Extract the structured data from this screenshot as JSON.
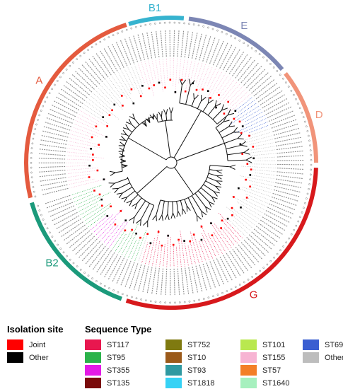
{
  "clades": [
    {
      "label": "A",
      "color": "#e45a3e"
    },
    {
      "label": "B1",
      "color": "#36b3cf"
    },
    {
      "label": "E",
      "color": "#7c86b4"
    },
    {
      "label": "D",
      "color": "#f1947a"
    },
    {
      "label": "G",
      "color": "#d7191c"
    },
    {
      "label": "B2",
      "color": "#1b9a7b"
    }
  ],
  "legend": {
    "isolation_title": "Isolation site",
    "isolation_items": [
      {
        "label": "Joint",
        "color": "#ff0000"
      },
      {
        "label": "Other",
        "color": "#000000"
      }
    ],
    "sequence_title": "Sequence Type",
    "sequence_items": [
      {
        "label": "ST117",
        "color": "#e8174f"
      },
      {
        "label": "ST95",
        "color": "#2bb34b"
      },
      {
        "label": "ST355",
        "color": "#e31be5"
      },
      {
        "label": "ST135",
        "color": "#7a0b0b"
      },
      {
        "label": "ST752",
        "color": "#7f7a10"
      },
      {
        "label": "ST10",
        "color": "#9b5a1a"
      },
      {
        "label": "ST93",
        "color": "#2f99a1"
      },
      {
        "label": "ST1818",
        "color": "#36d2f5"
      },
      {
        "label": "ST101",
        "color": "#b9e84f"
      },
      {
        "label": "ST155",
        "color": "#f7b4d3"
      },
      {
        "label": "ST57",
        "color": "#f37f27"
      },
      {
        "label": "ST1640",
        "color": "#a6f0be"
      },
      {
        "label": "ST69",
        "color": "#3a5ed1"
      },
      {
        "label": "Other",
        "color": "#bdbdbd"
      }
    ]
  }
}
